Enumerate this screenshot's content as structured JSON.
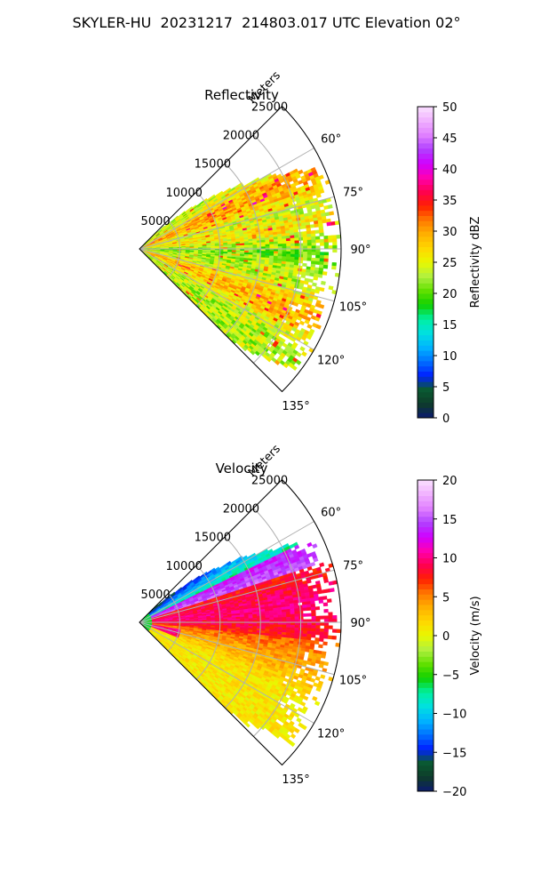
{
  "title": "SKYLER-HU  20231217  214803.017 UTC Elevation 02°",
  "chart_data": [
    {
      "type": "heatmap",
      "projection": "polar-sector",
      "title": "Reflectivity",
      "radial_label": "Meters",
      "radial_ticks": [
        "5000",
        "10000",
        "15000",
        "20000",
        "25000"
      ],
      "radial_values": [
        5000,
        10000,
        15000,
        20000,
        25000
      ],
      "range_max_m": 25000,
      "azimuth_ticks": [
        "60°",
        "75°",
        "90°",
        "105°",
        "120°",
        "135°"
      ],
      "azimuth_values": [
        60,
        75,
        90,
        105,
        120,
        135
      ],
      "azimuth_range": [
        45,
        135
      ],
      "grid": true,
      "colorbar": {
        "label": "Reflectivity dBZ",
        "ticks": [
          "0",
          "5",
          "10",
          "15",
          "20",
          "25",
          "30",
          "35",
          "40",
          "45",
          "50"
        ],
        "range": [
          0,
          50
        ],
        "colors": [
          "#0b1a6e",
          "#0e3b2a",
          "#0a5a30",
          "#0020ff",
          "#0070ff",
          "#00b4ff",
          "#00e0e0",
          "#00f0a0",
          "#10d000",
          "#60e000",
          "#b0f040",
          "#e8f800",
          "#ffd700",
          "#ffb000",
          "#ff7800",
          "#ff2000",
          "#ff0050",
          "#ff00b0",
          "#d000ff",
          "#b040ff",
          "#e080ff",
          "#f0b0ff",
          "#fae0ff"
        ]
      }
    },
    {
      "type": "heatmap",
      "projection": "polar-sector",
      "title": "Velocity",
      "radial_label": "Meters",
      "radial_ticks": [
        "5000",
        "10000",
        "15000",
        "20000",
        "25000"
      ],
      "radial_values": [
        5000,
        10000,
        15000,
        20000,
        25000
      ],
      "range_max_m": 25000,
      "azimuth_ticks": [
        "60°",
        "75°",
        "90°",
        "105°",
        "120°",
        "135°"
      ],
      "azimuth_values": [
        60,
        75,
        90,
        105,
        120,
        135
      ],
      "azimuth_range": [
        45,
        135
      ],
      "grid": true,
      "colorbar": {
        "label": "Velocity (m/s)",
        "ticks": [
          "−20",
          "−15",
          "−10",
          "−5",
          "0",
          "5",
          "10",
          "15",
          "20"
        ],
        "range": [
          -20,
          20
        ],
        "colors": [
          "#0b1a6e",
          "#0e3b2a",
          "#0a5a30",
          "#0020ff",
          "#0070ff",
          "#00b4ff",
          "#00e0e0",
          "#00f0a0",
          "#10d000",
          "#60e000",
          "#b0f040",
          "#e8f800",
          "#ffd700",
          "#ffb000",
          "#ff7800",
          "#ff2000",
          "#ff0050",
          "#ff00b0",
          "#d000ff",
          "#b040ff",
          "#e080ff",
          "#f0b0ff",
          "#fae0ff"
        ]
      }
    }
  ]
}
